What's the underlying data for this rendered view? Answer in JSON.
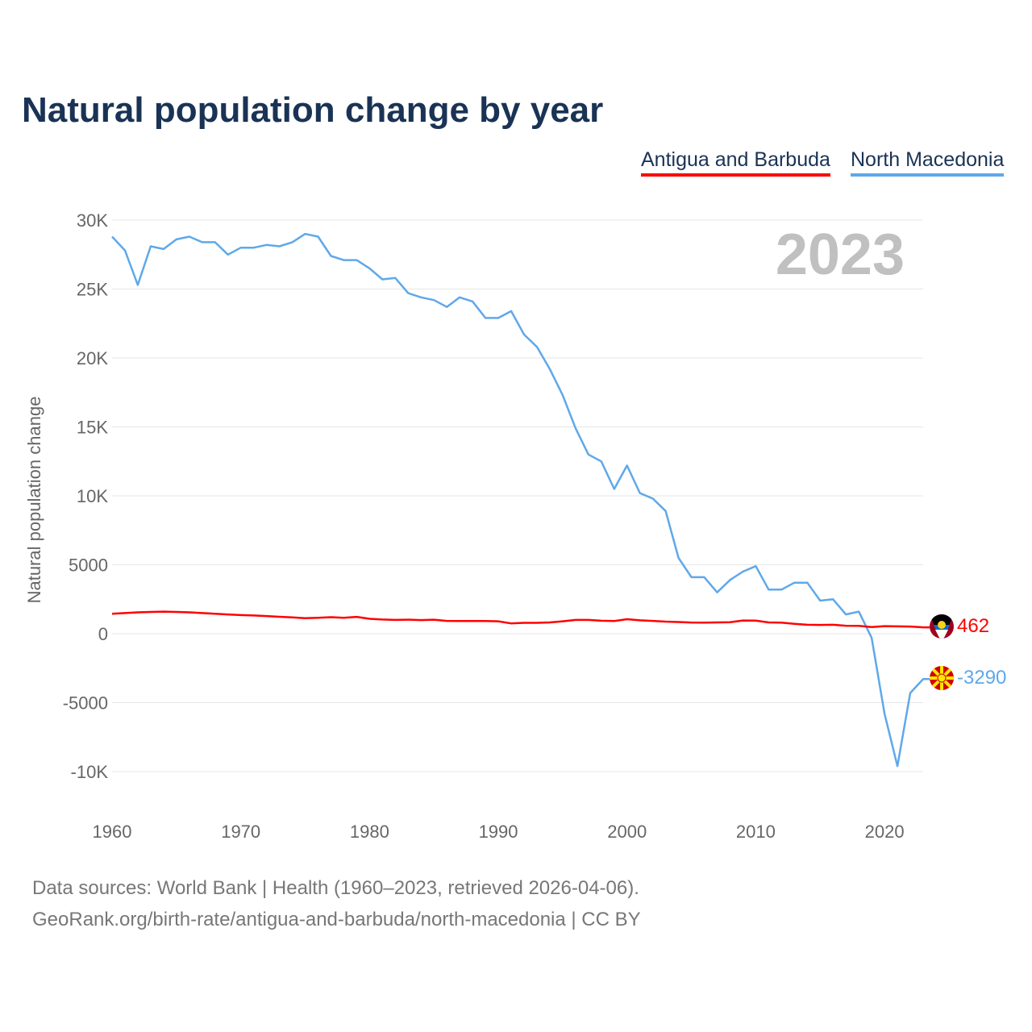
{
  "chart_data": {
    "type": "line",
    "title": "Natural population change by year",
    "xlabel": "",
    "ylabel": "Natural population change",
    "xlim": [
      1960,
      2023
    ],
    "ylim": [
      -12000,
      30000
    ],
    "yticks": [
      30000,
      25000,
      20000,
      15000,
      10000,
      5000,
      0,
      -5000,
      -10000
    ],
    "ytick_labels": [
      "30K",
      "25K",
      "20K",
      "15K",
      "10K",
      "5000",
      "0",
      "-5000",
      "-10K"
    ],
    "xticks": [
      1960,
      1970,
      1980,
      1990,
      2000,
      2010,
      2020
    ],
    "xtick_labels": [
      "1960",
      "1970",
      "1980",
      "1990",
      "2000",
      "2010",
      "2020"
    ],
    "grid": true,
    "legend_position": "top-right",
    "year_label": "2023",
    "x": [
      1960,
      1961,
      1962,
      1963,
      1964,
      1965,
      1966,
      1967,
      1968,
      1969,
      1970,
      1971,
      1972,
      1973,
      1974,
      1975,
      1976,
      1977,
      1978,
      1979,
      1980,
      1981,
      1982,
      1983,
      1984,
      1985,
      1986,
      1987,
      1988,
      1989,
      1990,
      1991,
      1992,
      1993,
      1994,
      1995,
      1996,
      1997,
      1998,
      1999,
      2000,
      2001,
      2002,
      2003,
      2004,
      2005,
      2006,
      2007,
      2008,
      2009,
      2010,
      2011,
      2012,
      2013,
      2014,
      2015,
      2016,
      2017,
      2018,
      2019,
      2020,
      2021,
      2022,
      2023
    ],
    "series": [
      {
        "name": "Antigua and Barbuda",
        "color": "#ff0000",
        "end_label": "462",
        "values": [
          1450,
          1500,
          1550,
          1580,
          1600,
          1580,
          1550,
          1500,
          1450,
          1400,
          1350,
          1320,
          1280,
          1230,
          1180,
          1130,
          1160,
          1200,
          1150,
          1220,
          1080,
          1030,
          1000,
          1020,
          990,
          1020,
          930,
          920,
          920,
          920,
          900,
          750,
          790,
          790,
          820,
          900,
          1000,
          1000,
          940,
          920,
          1050,
          970,
          930,
          880,
          850,
          810,
          800,
          820,
          830,
          960,
          950,
          820,
          800,
          720,
          650,
          640,
          650,
          580,
          570,
          480,
          550,
          530,
          520,
          462
        ]
      },
      {
        "name": "North Macedonia",
        "color": "#5fa8ea",
        "end_label": "-3290",
        "values": [
          28800,
          27800,
          25300,
          28100,
          27900,
          28600,
          28800,
          28400,
          28400,
          27500,
          28000,
          28000,
          28200,
          28100,
          28400,
          29000,
          28800,
          27400,
          27100,
          27100,
          26500,
          25700,
          25800,
          24700,
          24400,
          24200,
          23700,
          24400,
          24100,
          22900,
          22900,
          23400,
          21700,
          20800,
          19200,
          17300,
          14900,
          13000,
          12500,
          10500,
          12200,
          10200,
          9800,
          8900,
          5500,
          4100,
          4100,
          3000,
          3900,
          4500,
          4900,
          3200,
          3200,
          3700,
          3700,
          2400,
          2500,
          1400,
          1600,
          -300,
          -5800,
          -9600,
          -4300,
          -3290
        ]
      }
    ]
  },
  "footer": {
    "line1": "Data sources: World Bank | Health (1960–2023, retrieved 2026-04-06).",
    "line2": "GeoRank.org/birth-rate/antigua-and-barbuda/north-macedonia | CC BY"
  }
}
